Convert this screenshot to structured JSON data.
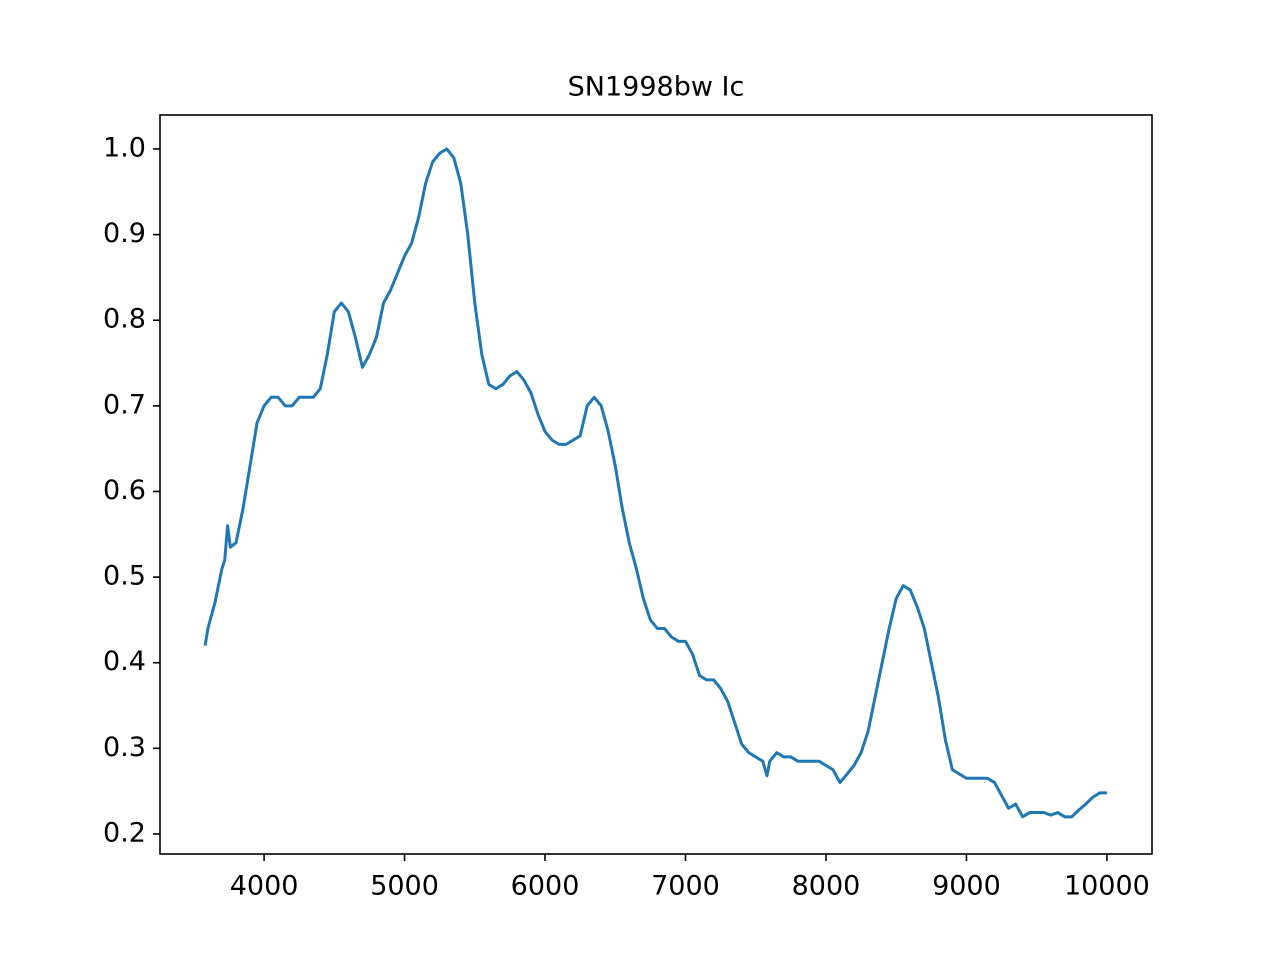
{
  "chart_data": {
    "type": "line",
    "title": "SN1998bw Ic",
    "xlim": [
      3259,
      10321
    ],
    "ylim": [
      0.1766,
      1.0397
    ],
    "xticks": [
      4000,
      5000,
      6000,
      7000,
      8000,
      9000,
      10000
    ],
    "yticks": [
      0.2,
      0.3,
      0.4,
      0.5,
      0.6,
      0.7,
      0.8,
      0.9,
      {
        "value": 1.0,
        "label": "1.0"
      }
    ],
    "x": [
      3580,
      3600,
      3650,
      3700,
      3720,
      3740,
      3760,
      3800,
      3850,
      3900,
      3950,
      4000,
      4050,
      4100,
      4150,
      4200,
      4250,
      4300,
      4350,
      4400,
      4450,
      4500,
      4550,
      4600,
      4650,
      4700,
      4750,
      4800,
      4850,
      4900,
      4950,
      5000,
      5050,
      5100,
      5150,
      5200,
      5250,
      5300,
      5350,
      5400,
      5450,
      5500,
      5550,
      5600,
      5650,
      5700,
      5750,
      5800,
      5850,
      5900,
      5950,
      6000,
      6050,
      6100,
      6150,
      6200,
      6250,
      6300,
      6350,
      6400,
      6450,
      6500,
      6550,
      6600,
      6650,
      6700,
      6750,
      6800,
      6850,
      6900,
      6950,
      7000,
      7050,
      7100,
      7150,
      7200,
      7250,
      7300,
      7350,
      7400,
      7450,
      7500,
      7550,
      7580,
      7600,
      7650,
      7700,
      7750,
      7800,
      7850,
      7900,
      7950,
      8000,
      8050,
      8100,
      8150,
      8200,
      8250,
      8300,
      8350,
      8400,
      8450,
      8500,
      8550,
      8600,
      8650,
      8700,
      8750,
      8800,
      8850,
      8900,
      8950,
      9000,
      9050,
      9100,
      9150,
      9200,
      9250,
      9300,
      9350,
      9400,
      9450,
      9500,
      9550,
      9600,
      9650,
      9700,
      9750,
      9800,
      9850,
      9900,
      9950,
      10000
    ],
    "series": [
      {
        "color": "#1f77b4",
        "values": [
          0.42,
          0.44,
          0.47,
          0.51,
          0.52,
          0.56,
          0.535,
          0.54,
          0.58,
          0.63,
          0.68,
          0.7,
          0.71,
          0.71,
          0.7,
          0.7,
          0.71,
          0.71,
          0.71,
          0.72,
          0.76,
          0.81,
          0.82,
          0.81,
          0.78,
          0.745,
          0.76,
          0.78,
          0.82,
          0.835,
          0.855,
          0.875,
          0.89,
          0.92,
          0.96,
          0.985,
          0.995,
          1.0,
          0.99,
          0.96,
          0.9,
          0.82,
          0.76,
          0.725,
          0.72,
          0.725,
          0.735,
          0.74,
          0.73,
          0.715,
          0.69,
          0.67,
          0.66,
          0.655,
          0.655,
          0.66,
          0.665,
          0.7,
          0.71,
          0.7,
          0.67,
          0.63,
          0.58,
          0.54,
          0.51,
          0.475,
          0.45,
          0.44,
          0.44,
          0.43,
          0.425,
          0.425,
          0.41,
          0.385,
          0.38,
          0.38,
          0.37,
          0.355,
          0.33,
          0.305,
          0.295,
          0.29,
          0.285,
          0.268,
          0.285,
          0.295,
          0.29,
          0.29,
          0.285,
          0.285,
          0.285,
          0.285,
          0.28,
          0.275,
          0.26,
          0.27,
          0.28,
          0.295,
          0.32,
          0.36,
          0.4,
          0.44,
          0.475,
          0.49,
          0.485,
          0.465,
          0.44,
          0.4,
          0.36,
          0.31,
          0.275,
          0.27,
          0.265,
          0.265,
          0.265,
          0.265,
          0.26,
          0.245,
          0.23,
          0.235,
          0.22,
          0.225,
          0.225,
          0.225,
          0.222,
          0.225,
          0.22,
          0.22,
          0.228,
          0.235,
          0.243,
          0.248,
          0.248
        ]
      }
    ]
  }
}
